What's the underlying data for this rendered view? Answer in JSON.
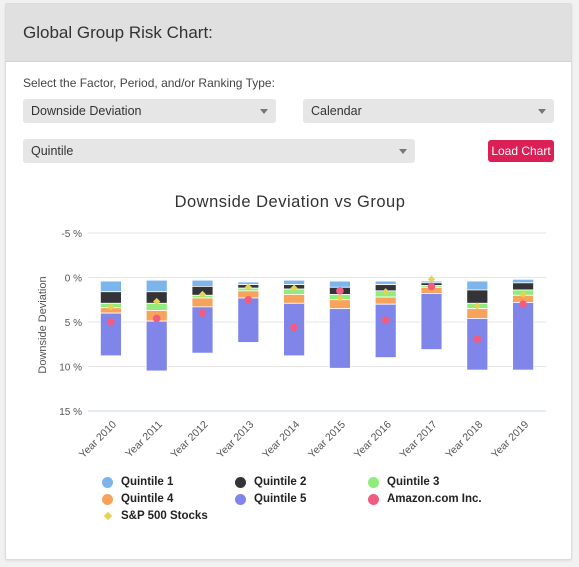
{
  "header": {
    "title": "Global Group Risk Chart:"
  },
  "controls": {
    "prompt": "Select the Factor, Period, and/or Ranking Type:",
    "factor_value": "Downside Deviation",
    "period_value": "Calendar",
    "ranking_value": "Quintile",
    "load_button": "Load Chart"
  },
  "colors": {
    "q1": "#7cb5ec",
    "q2": "#333338",
    "q3": "#90ed7d",
    "q4": "#f7a35c",
    "q5": "#8085e9",
    "amazon": "#f15c80",
    "sp500": "#e4d354",
    "accent": "#dc1f55"
  },
  "chart_data": {
    "type": "bar",
    "title": "Downside Deviation vs Group",
    "ylabel": "Downside Deviation",
    "ylim": [
      -5,
      15
    ],
    "y_reversed": true,
    "yticks": [
      "-5 %",
      "0 %",
      "5 %",
      "10 %",
      "15 %"
    ],
    "yticks_values": [
      -5,
      0,
      5,
      10,
      15
    ],
    "categories": [
      "Year 2010",
      "Year 2011",
      "Year 2012",
      "Year 2013",
      "Year 2014",
      "Year 2015",
      "Year 2016",
      "Year 2017",
      "Year 2018",
      "Year 2019"
    ],
    "stacks": [
      {
        "name": "Quintile 1",
        "color_key": "q1",
        "from": [
          0.4,
          0.3,
          0.3,
          0.5,
          0.3,
          0.4,
          0.4,
          0.4,
          0.4,
          0.2
        ],
        "to": [
          1.6,
          1.6,
          1.0,
          0.8,
          0.8,
          1.1,
          0.8,
          0.6,
          1.4,
          0.6
        ]
      },
      {
        "name": "Quintile 2",
        "color_key": "q2",
        "from": [
          1.6,
          1.6,
          1.0,
          0.8,
          0.8,
          1.1,
          0.8,
          0.6,
          1.4,
          0.6
        ],
        "to": [
          2.9,
          2.9,
          2.0,
          1.2,
          1.3,
          1.9,
          1.5,
          0.9,
          2.9,
          1.4
        ]
      },
      {
        "name": "Quintile 3",
        "color_key": "q3",
        "from": [
          2.9,
          2.9,
          2.0,
          1.2,
          1.3,
          1.9,
          1.5,
          0.9,
          2.9,
          1.4
        ],
        "to": [
          3.4,
          3.7,
          2.3,
          1.5,
          1.9,
          2.5,
          2.2,
          1.1,
          3.5,
          2.0
        ]
      },
      {
        "name": "Quintile 4",
        "color_key": "q4",
        "from": [
          3.4,
          3.7,
          2.3,
          1.5,
          1.9,
          2.5,
          2.2,
          1.1,
          3.5,
          2.0
        ],
        "to": [
          4.0,
          4.9,
          3.3,
          2.3,
          2.9,
          3.5,
          3.0,
          1.8,
          4.6,
          2.8
        ]
      },
      {
        "name": "Quintile 5",
        "color_key": "q5",
        "from": [
          4.0,
          4.9,
          3.3,
          2.3,
          2.9,
          3.5,
          3.0,
          1.8,
          4.6,
          2.8
        ],
        "to": [
          8.8,
          10.5,
          8.5,
          7.3,
          8.8,
          10.2,
          9.0,
          8.1,
          10.4,
          10.4
        ]
      }
    ],
    "points": [
      {
        "name": "Amazon.com Inc.",
        "color_key": "amazon",
        "shape": "circle",
        "values": [
          5.0,
          4.6,
          4.0,
          2.5,
          5.6,
          1.5,
          4.8,
          1.0,
          6.9,
          3.0
        ]
      },
      {
        "name": "S&P 500 Stocks",
        "color_key": "sp500",
        "shape": "diamond",
        "values": [
          3.3,
          2.7,
          1.9,
          1.1,
          1.2,
          2.3,
          1.6,
          0.2,
          3.2,
          1.9
        ]
      }
    ],
    "legend": [
      {
        "label": "Quintile 1",
        "color_key": "q1",
        "shape": "circle"
      },
      {
        "label": "Quintile 2",
        "color_key": "q2",
        "shape": "circle"
      },
      {
        "label": "Quintile 3",
        "color_key": "q3",
        "shape": "circle"
      },
      {
        "label": "Quintile 4",
        "color_key": "q4",
        "shape": "circle"
      },
      {
        "label": "Quintile 5",
        "color_key": "q5",
        "shape": "circle"
      },
      {
        "label": "Amazon.com Inc.",
        "color_key": "amazon",
        "shape": "circle"
      },
      {
        "label": "S&P 500 Stocks",
        "color_key": "sp500",
        "shape": "diamond"
      }
    ],
    "legend_placement": "bottom",
    "grid": true
  }
}
